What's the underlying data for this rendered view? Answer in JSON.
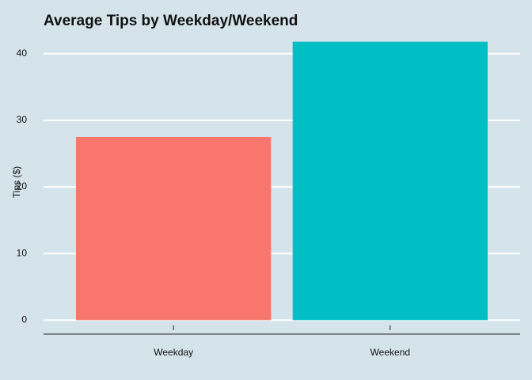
{
  "chart_data": {
    "type": "bar",
    "title": "Average Tips by Weekday/Weekend",
    "y_label": "Tips ($)",
    "categories": [
      "Weekday",
      "Weekend"
    ],
    "values": [
      27.5,
      41.8
    ],
    "colors": [
      "#F8766D",
      "#00BFC4"
    ],
    "ylim": [
      -2.1,
      43.9
    ],
    "yticks": [
      0,
      10,
      20,
      30,
      40
    ],
    "grid": true
  }
}
